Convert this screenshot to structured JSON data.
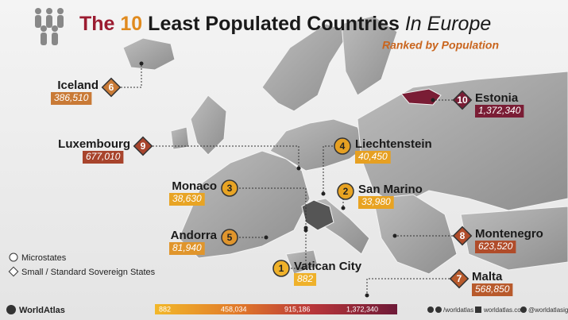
{
  "header": {
    "title_the": "The",
    "title_number": "10",
    "title_main": "Least Populated Countries",
    "title_suffix": "In Europe",
    "subtitle": "Ranked by Population"
  },
  "countries": [
    {
      "rank": 1,
      "name": "Vatican City",
      "population": "882",
      "shape": "circle",
      "color": "#efb12a"
    },
    {
      "rank": 2,
      "name": "San Marino",
      "population": "33,980",
      "shape": "circle",
      "color": "#e8a322"
    },
    {
      "rank": 3,
      "name": "Monaco",
      "population": "38,630",
      "shape": "circle",
      "color": "#e8a424"
    },
    {
      "rank": 4,
      "name": "Liechtenstein",
      "population": "40,450",
      "shape": "circle",
      "color": "#e6a022"
    },
    {
      "rank": 5,
      "name": "Andorra",
      "population": "81,940",
      "shape": "circle",
      "color": "#e0952c"
    },
    {
      "rank": 6,
      "name": "Iceland",
      "population": "386,510",
      "shape": "diamond",
      "color": "#c97a36"
    },
    {
      "rank": 7,
      "name": "Malta",
      "population": "568,850",
      "shape": "diamond",
      "color": "#b85a2c"
    },
    {
      "rank": 8,
      "name": "Montenegro",
      "population": "623,520",
      "shape": "diamond",
      "color": "#b04c2a"
    },
    {
      "rank": 9,
      "name": "Luxembourg",
      "population": "677,010",
      "shape": "diamond",
      "color": "#a8442c"
    },
    {
      "rank": 10,
      "name": "Estonia",
      "population": "1,372,340",
      "shape": "diamond",
      "color": "#7a1d35"
    }
  ],
  "legend": {
    "circle": "Microstates",
    "diamond": "Small / Standard Sovereign States"
  },
  "scale": {
    "labels": [
      "882",
      "458,034",
      "915,186",
      "1,372,340"
    ]
  },
  "footer": {
    "brand": "WorldAtlas",
    "social": "/worldatlas",
    "site": "worldatlas.com",
    "instagram": "@worldatlasig"
  }
}
